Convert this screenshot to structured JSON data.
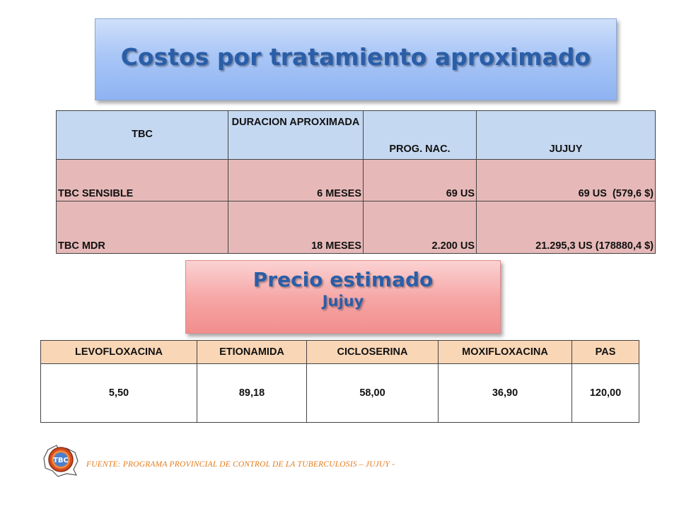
{
  "title": "Costos por tratamiento aproximado",
  "cost_table": {
    "headers": [
      "TBC",
      "DURACION APROXIMADA",
      "PROG. NAC.",
      "JUJUY"
    ],
    "rows": [
      [
        "TBC SENSIBLE",
        "6 MESES",
        "69 US",
        "69 US  (579,6 $)"
      ],
      [
        "TBC MDR",
        "18 MESES",
        "2.200 US",
        "21.295,3 US (178880,4 $)"
      ]
    ]
  },
  "price_box": {
    "title": "Precio estimado",
    "subtitle": "Jujuy"
  },
  "price_table": {
    "headers": [
      "LEVOFLOXACINA",
      "ETIONAMIDA",
      "CICLOSERINA",
      "MOXIFLOXACINA",
      "PAS"
    ],
    "values": [
      "5,50",
      "89,18",
      "58,00",
      "36,90",
      "120,00"
    ]
  },
  "footer": {
    "source": "FUENTE: PROGRAMA PROVINCIAL DE CONTROL DE LA TUBERCULOSIS – JUJUY -",
    "logo_text": "TBC",
    "logo_icon": "tbc-program-logo"
  },
  "colors": {
    "title_blue": "#2a5ea8",
    "header_blue": "#c5d8f1",
    "row_pink": "#e6b9b8",
    "header_peach": "#f9d6b6",
    "footer_orange": "#e37b1e"
  }
}
